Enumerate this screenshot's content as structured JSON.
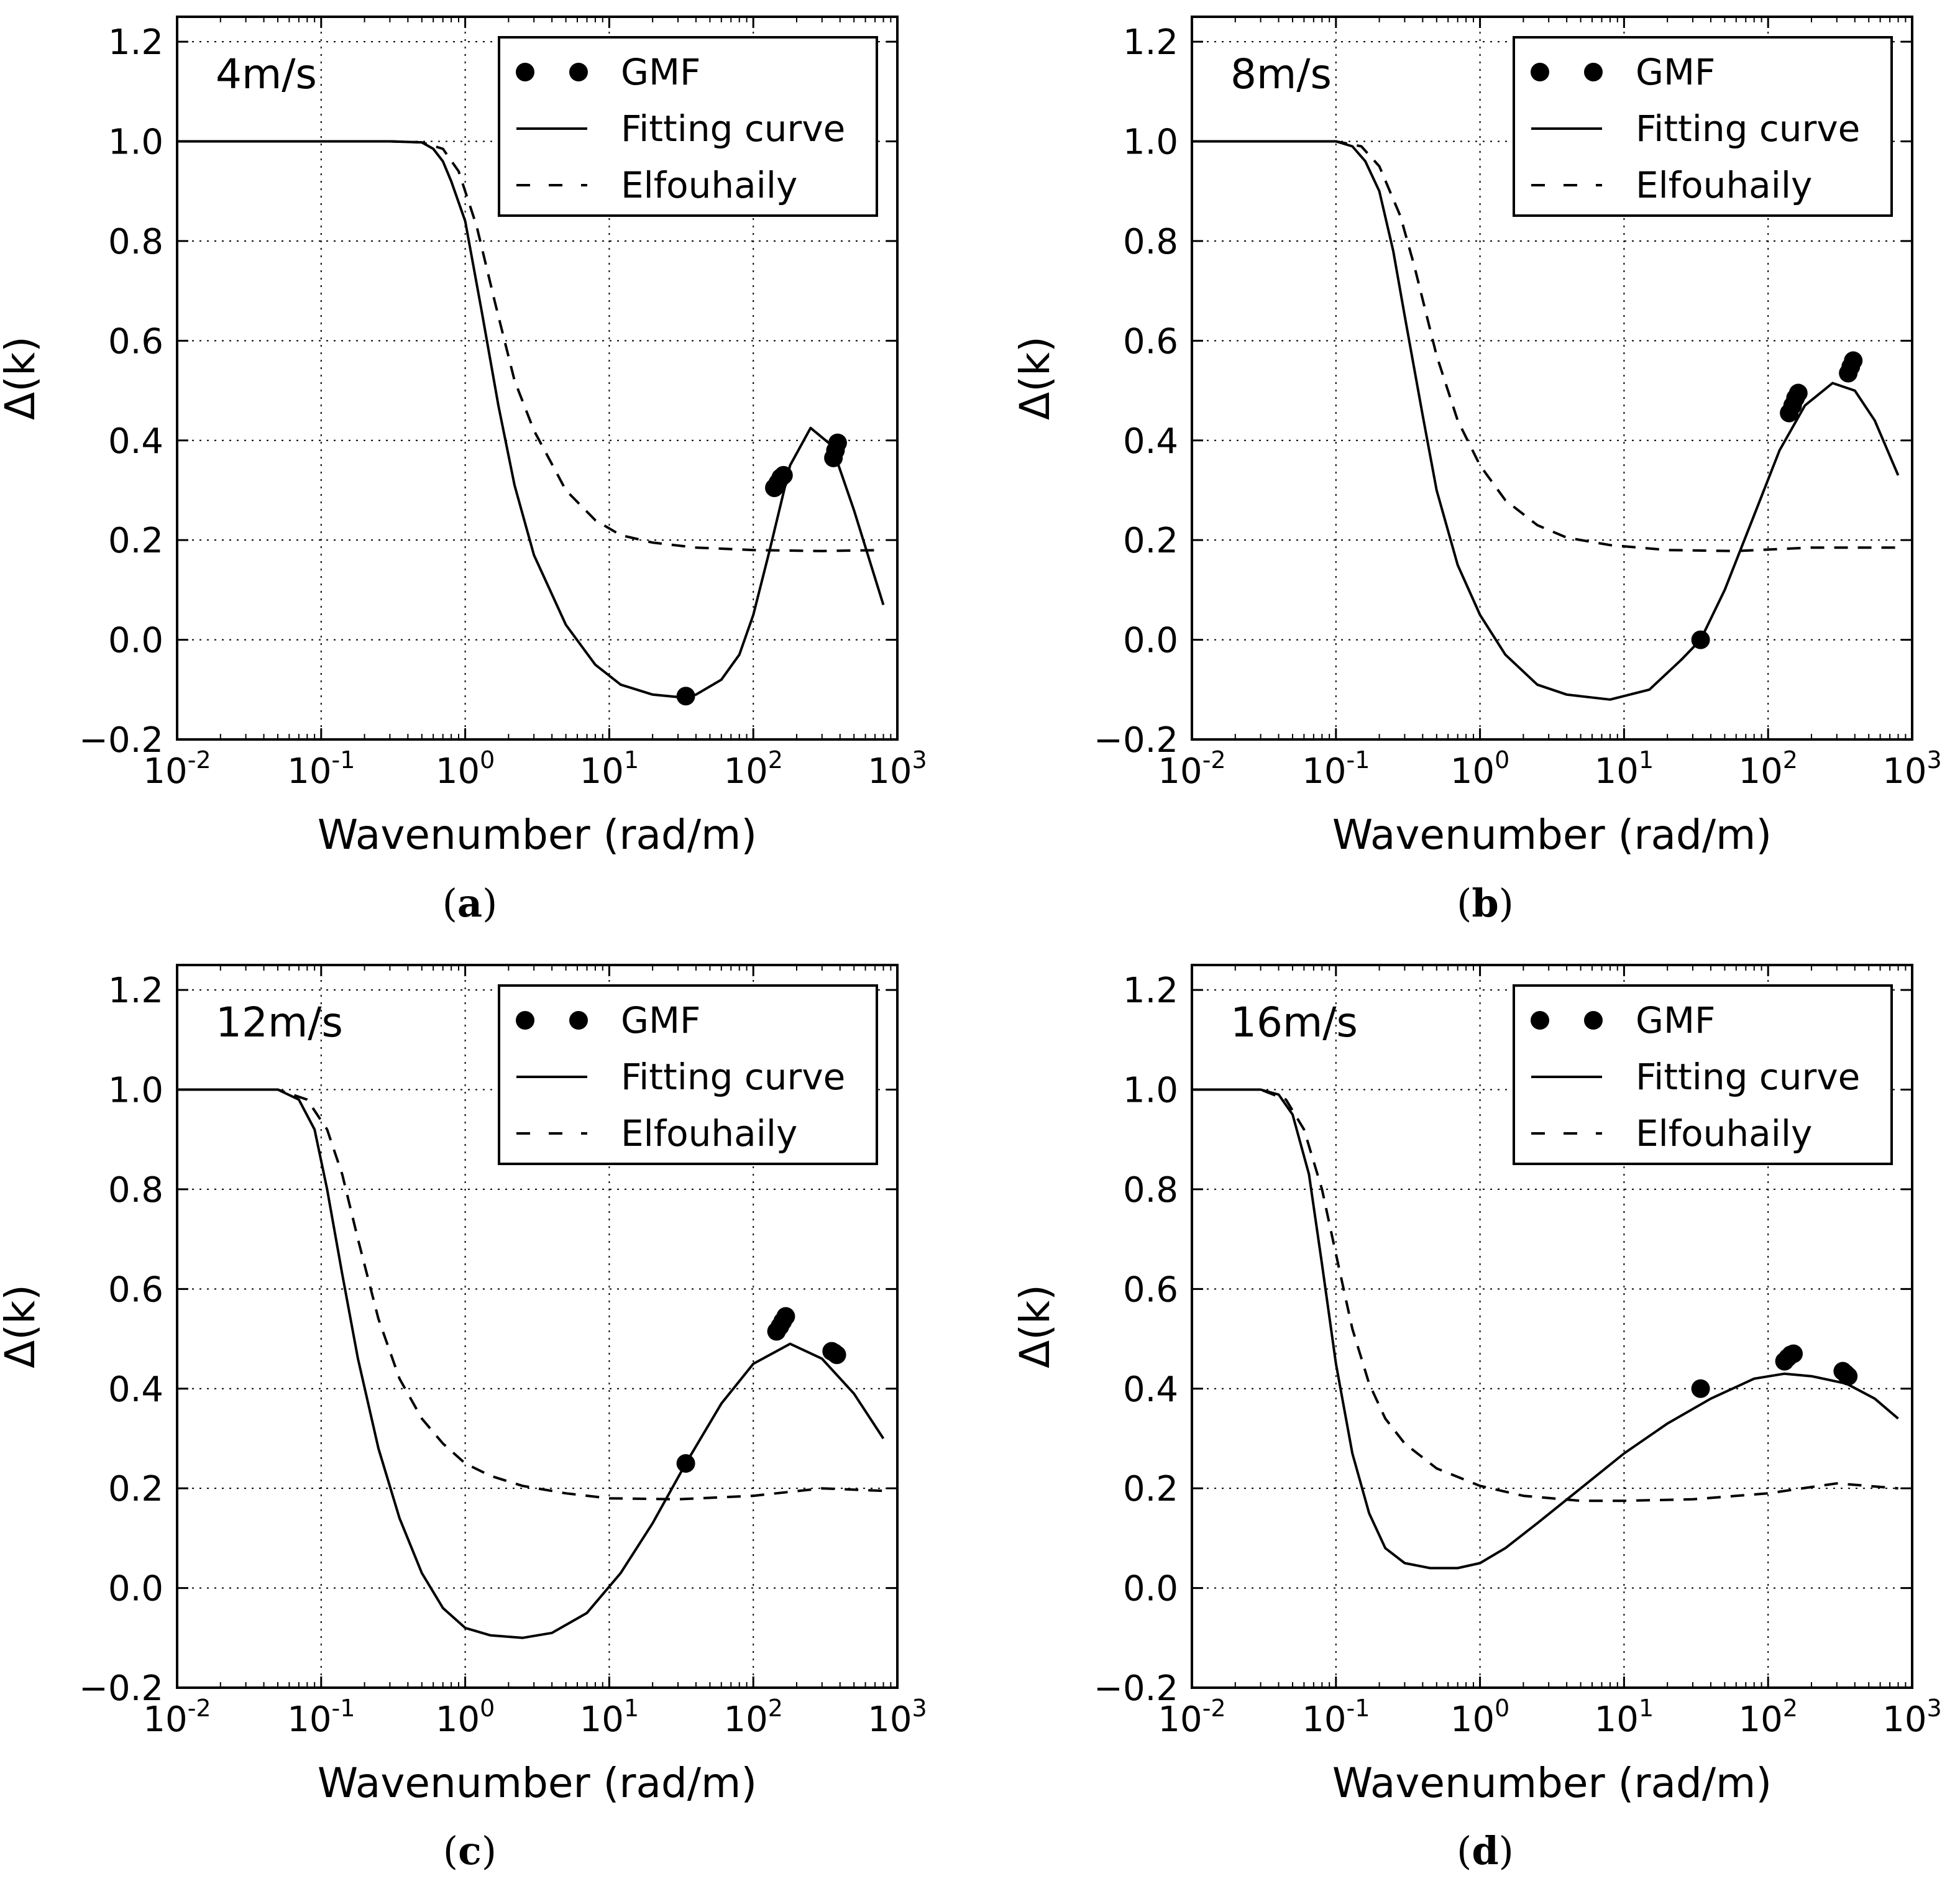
{
  "chart_data": [
    {
      "type": "line",
      "panel": "a",
      "caption_letter": "a",
      "wind_label": "4m/s",
      "xlabel": "Wavenumber (rad/m)",
      "ylabel": "Δ(k)",
      "xscale": "log",
      "xlim": [
        0.01,
        1000
      ],
      "ylim": [
        -0.2,
        1.25
      ],
      "yticks": [
        -0.2,
        0.0,
        0.2,
        0.4,
        0.6,
        0.8,
        1.0,
        1.2
      ],
      "ytick_labels": [
        "−0.2",
        "0.0",
        "0.2",
        "0.4",
        "0.6",
        "0.8",
        "1.0",
        "1.2"
      ],
      "xticks_exp": [
        "-2",
        "-1",
        "0",
        "1",
        "2",
        "3"
      ],
      "grid": true,
      "legend": {
        "position": "top-right",
        "entries": [
          "GMF",
          "Fitting curve",
          "Elfouhaily"
        ]
      },
      "series": [
        {
          "name": "Fitting curve",
          "style": "solid",
          "x": [
            0.01,
            0.3,
            0.5,
            0.6,
            0.7,
            0.8,
            1.0,
            1.3,
            1.7,
            2.2,
            3,
            5,
            8,
            12,
            20,
            30,
            40,
            60,
            80,
            100,
            130,
            180,
            250,
            350,
            500,
            800
          ],
          "y": [
            1.0,
            1.0,
            0.998,
            0.985,
            0.96,
            0.92,
            0.84,
            0.66,
            0.47,
            0.31,
            0.17,
            0.03,
            -0.05,
            -0.09,
            -0.11,
            -0.115,
            -0.11,
            -0.08,
            -0.03,
            0.05,
            0.18,
            0.35,
            0.425,
            0.39,
            0.26,
            0.07
          ]
        },
        {
          "name": "Elfouhaily",
          "style": "dashed",
          "x": [
            0.01,
            0.3,
            0.5,
            0.7,
            0.9,
            1.2,
            1.6,
            2.2,
            3,
            5,
            8,
            12,
            20,
            40,
            100,
            300,
            800
          ],
          "y": [
            1.0,
            1.0,
            0.998,
            0.985,
            0.94,
            0.83,
            0.68,
            0.52,
            0.42,
            0.3,
            0.24,
            0.21,
            0.195,
            0.185,
            0.18,
            0.178,
            0.18
          ]
        },
        {
          "name": "GMF",
          "style": "markers",
          "x": [
            34,
            140,
            148,
            155,
            162,
            360,
            372,
            385
          ],
          "y": [
            -0.113,
            0.305,
            0.315,
            0.325,
            0.33,
            0.365,
            0.38,
            0.395
          ]
        }
      ]
    },
    {
      "type": "line",
      "panel": "b",
      "caption_letter": "b",
      "wind_label": "8m/s",
      "xlabel": "Wavenumber (rad/m)",
      "ylabel": "Δ(k)",
      "xscale": "log",
      "xlim": [
        0.01,
        1000
      ],
      "ylim": [
        -0.2,
        1.25
      ],
      "yticks": [
        -0.2,
        0.0,
        0.2,
        0.4,
        0.6,
        0.8,
        1.0,
        1.2
      ],
      "ytick_labels": [
        "−0.2",
        "0.0",
        "0.2",
        "0.4",
        "0.6",
        "0.8",
        "1.0",
        "1.2"
      ],
      "xticks_exp": [
        "-2",
        "-1",
        "0",
        "1",
        "2",
        "3"
      ],
      "grid": true,
      "legend": {
        "position": "top-right",
        "entries": [
          "GMF",
          "Fitting curve",
          "Elfouhaily"
        ]
      },
      "series": [
        {
          "name": "Fitting curve",
          "style": "solid",
          "x": [
            0.01,
            0.1,
            0.13,
            0.16,
            0.2,
            0.25,
            0.3,
            0.4,
            0.5,
            0.7,
            1.0,
            1.5,
            2.5,
            4,
            8,
            15,
            25,
            34,
            50,
            80,
            120,
            180,
            280,
            400,
            550,
            800
          ],
          "y": [
            1.0,
            1.0,
            0.99,
            0.96,
            0.9,
            0.78,
            0.65,
            0.45,
            0.3,
            0.15,
            0.05,
            -0.03,
            -0.09,
            -0.11,
            -0.12,
            -0.1,
            -0.04,
            0.0,
            0.1,
            0.25,
            0.38,
            0.47,
            0.515,
            0.5,
            0.44,
            0.33
          ]
        },
        {
          "name": "Elfouhaily",
          "style": "dashed",
          "x": [
            0.01,
            0.1,
            0.15,
            0.2,
            0.28,
            0.35,
            0.5,
            0.7,
            1.0,
            1.5,
            2.5,
            4,
            8,
            20,
            60,
            200,
            800
          ],
          "y": [
            1.0,
            1.0,
            0.99,
            0.95,
            0.85,
            0.75,
            0.57,
            0.44,
            0.35,
            0.28,
            0.23,
            0.205,
            0.19,
            0.18,
            0.178,
            0.185,
            0.185
          ]
        },
        {
          "name": "GMF",
          "style": "markers",
          "x": [
            34,
            140,
            148,
            155,
            162,
            360,
            375,
            390
          ],
          "y": [
            0.0,
            0.455,
            0.47,
            0.485,
            0.495,
            0.535,
            0.548,
            0.56
          ]
        }
      ]
    },
    {
      "type": "line",
      "panel": "c",
      "caption_letter": "c",
      "wind_label": "12m/s",
      "xlabel": "Wavenumber (rad/m)",
      "ylabel": "Δ(k)",
      "xscale": "log",
      "xlim": [
        0.01,
        1000
      ],
      "ylim": [
        -0.2,
        1.25
      ],
      "yticks": [
        -0.2,
        0.0,
        0.2,
        0.4,
        0.6,
        0.8,
        1.0,
        1.2
      ],
      "ytick_labels": [
        "−0.2",
        "0.0",
        "0.2",
        "0.4",
        "0.6",
        "0.8",
        "1.0",
        "1.2"
      ],
      "xticks_exp": [
        "-2",
        "-1",
        "0",
        "1",
        "2",
        "3"
      ],
      "grid": true,
      "legend": {
        "position": "top-right",
        "entries": [
          "GMF",
          "Fitting curve",
          "Elfouhaily"
        ]
      },
      "series": [
        {
          "name": "Fitting curve",
          "style": "solid",
          "x": [
            0.01,
            0.05,
            0.07,
            0.09,
            0.11,
            0.14,
            0.18,
            0.25,
            0.35,
            0.5,
            0.7,
            1.0,
            1.5,
            2.5,
            4,
            7,
            12,
            20,
            34,
            60,
            100,
            180,
            300,
            500,
            800
          ],
          "y": [
            1.0,
            1.0,
            0.98,
            0.92,
            0.8,
            0.63,
            0.46,
            0.28,
            0.14,
            0.03,
            -0.04,
            -0.08,
            -0.095,
            -0.1,
            -0.09,
            -0.05,
            0.03,
            0.13,
            0.25,
            0.37,
            0.45,
            0.49,
            0.46,
            0.39,
            0.3
          ]
        },
        {
          "name": "Elfouhaily",
          "style": "dashed",
          "x": [
            0.01,
            0.05,
            0.08,
            0.11,
            0.14,
            0.18,
            0.25,
            0.35,
            0.5,
            0.7,
            1.0,
            1.5,
            2.5,
            5,
            10,
            30,
            100,
            300,
            800
          ],
          "y": [
            1.0,
            1.0,
            0.98,
            0.92,
            0.83,
            0.7,
            0.54,
            0.42,
            0.34,
            0.29,
            0.25,
            0.225,
            0.205,
            0.19,
            0.18,
            0.178,
            0.185,
            0.2,
            0.195
          ]
        },
        {
          "name": "GMF",
          "style": "markers",
          "x": [
            34,
            145,
            153,
            160,
            168,
            350,
            365,
            380
          ],
          "y": [
            0.25,
            0.515,
            0.525,
            0.535,
            0.545,
            0.475,
            0.472,
            0.468
          ]
        }
      ]
    },
    {
      "type": "line",
      "panel": "d",
      "caption_letter": "d",
      "wind_label": "16m/s",
      "xlabel": "Wavenumber (rad/m)",
      "ylabel": "Δ(k)",
      "xscale": "log",
      "xlim": [
        0.01,
        1000
      ],
      "ylim": [
        -0.2,
        1.25
      ],
      "yticks": [
        -0.2,
        0.0,
        0.2,
        0.4,
        0.6,
        0.8,
        1.0,
        1.2
      ],
      "ytick_labels": [
        "−0.2",
        "0.0",
        "0.2",
        "0.4",
        "0.6",
        "0.8",
        "1.0",
        "1.2"
      ],
      "xticks_exp": [
        "-2",
        "-1",
        "0",
        "1",
        "2",
        "3"
      ],
      "grid": true,
      "legend": {
        "position": "top-right",
        "entries": [
          "GMF",
          "Fitting curve",
          "Elfouhaily"
        ]
      },
      "series": [
        {
          "name": "Fitting curve",
          "style": "solid",
          "x": [
            0.01,
            0.03,
            0.04,
            0.05,
            0.065,
            0.08,
            0.1,
            0.13,
            0.17,
            0.22,
            0.3,
            0.45,
            0.7,
            1.0,
            1.5,
            2.5,
            5,
            10,
            20,
            40,
            80,
            130,
            200,
            350,
            550,
            800
          ],
          "y": [
            1.0,
            1.0,
            0.99,
            0.95,
            0.83,
            0.65,
            0.45,
            0.27,
            0.15,
            0.08,
            0.05,
            0.04,
            0.04,
            0.05,
            0.08,
            0.13,
            0.2,
            0.27,
            0.33,
            0.38,
            0.42,
            0.43,
            0.425,
            0.41,
            0.38,
            0.34
          ]
        },
        {
          "name": "Elfouhaily",
          "style": "dashed",
          "x": [
            0.01,
            0.03,
            0.045,
            0.06,
            0.08,
            0.1,
            0.13,
            0.17,
            0.22,
            0.3,
            0.5,
            1.0,
            2,
            5,
            10,
            30,
            100,
            300,
            800
          ],
          "y": [
            1.0,
            1.0,
            0.98,
            0.92,
            0.8,
            0.67,
            0.52,
            0.41,
            0.34,
            0.29,
            0.24,
            0.205,
            0.185,
            0.175,
            0.175,
            0.178,
            0.19,
            0.21,
            0.2
          ]
        },
        {
          "name": "GMF",
          "style": "markers",
          "x": [
            34,
            130,
            137,
            144,
            150,
            330,
            345,
            360
          ],
          "y": [
            0.4,
            0.455,
            0.462,
            0.468,
            0.47,
            0.435,
            0.43,
            0.425
          ]
        }
      ]
    }
  ]
}
